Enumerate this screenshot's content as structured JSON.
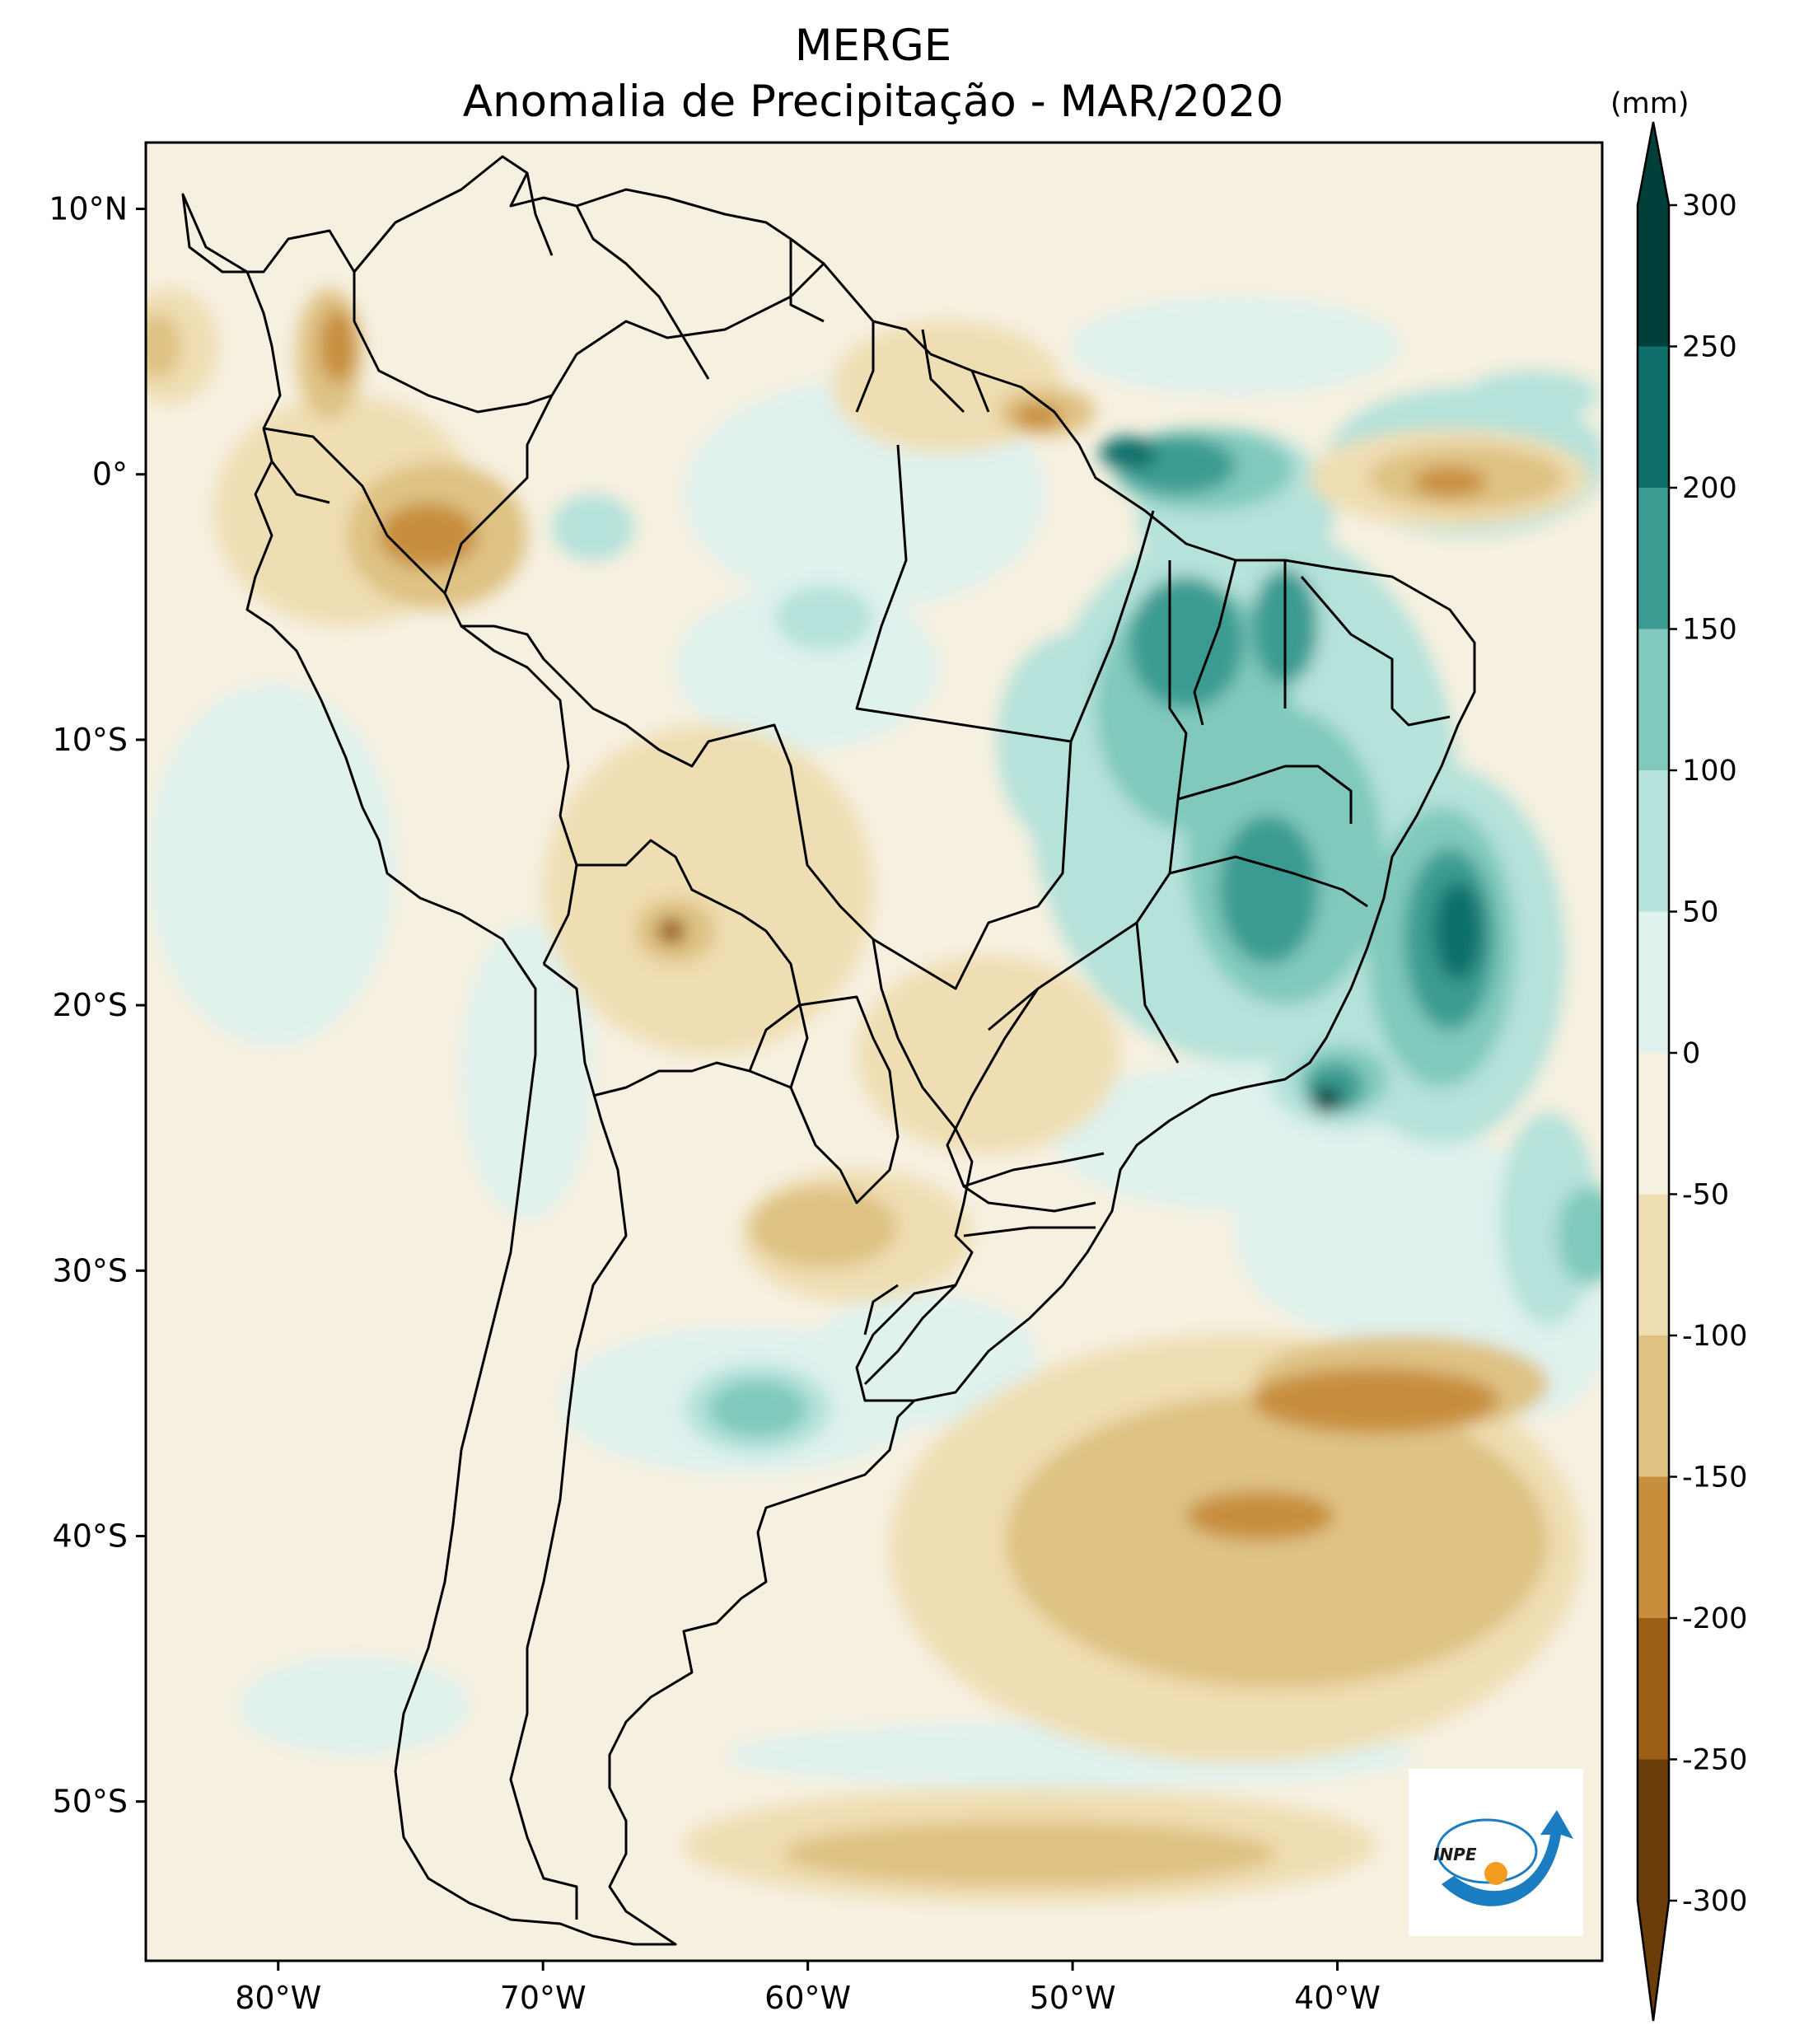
{
  "map": {
    "title_line1": "MERGE",
    "title_line2": "Anomalia de Precipitação - MAR/2020",
    "region": "South America",
    "lat_ticks": [
      "10°N",
      "0°",
      "10°S",
      "20°S",
      "30°S",
      "40°S",
      "50°S"
    ],
    "lon_ticks": [
      "80°W",
      "70°W",
      "60°W",
      "50°W",
      "40°W"
    ],
    "lon_range": [
      -85,
      -30
    ],
    "lat_range": [
      -56,
      12.5
    ]
  },
  "colorbar": {
    "unit": "(mm)",
    "levels": [
      "300",
      "250",
      "200",
      "150",
      "100",
      "50",
      "0",
      "-50",
      "-100",
      "-150",
      "-200",
      "-250",
      "-300"
    ],
    "colors": [
      "#01403a",
      "#0f6f6a",
      "#3b9b92",
      "#80c9bc",
      "#b5e2da",
      "#e0f2ee",
      "#f6f0e0",
      "#efdeb3",
      "#dfc284",
      "#c78e3c",
      "#9a5e15",
      "#6b3d08"
    ]
  },
  "logo": {
    "text": "INPE",
    "accent": "#1a7cc1",
    "dot": "#f39c20"
  }
}
